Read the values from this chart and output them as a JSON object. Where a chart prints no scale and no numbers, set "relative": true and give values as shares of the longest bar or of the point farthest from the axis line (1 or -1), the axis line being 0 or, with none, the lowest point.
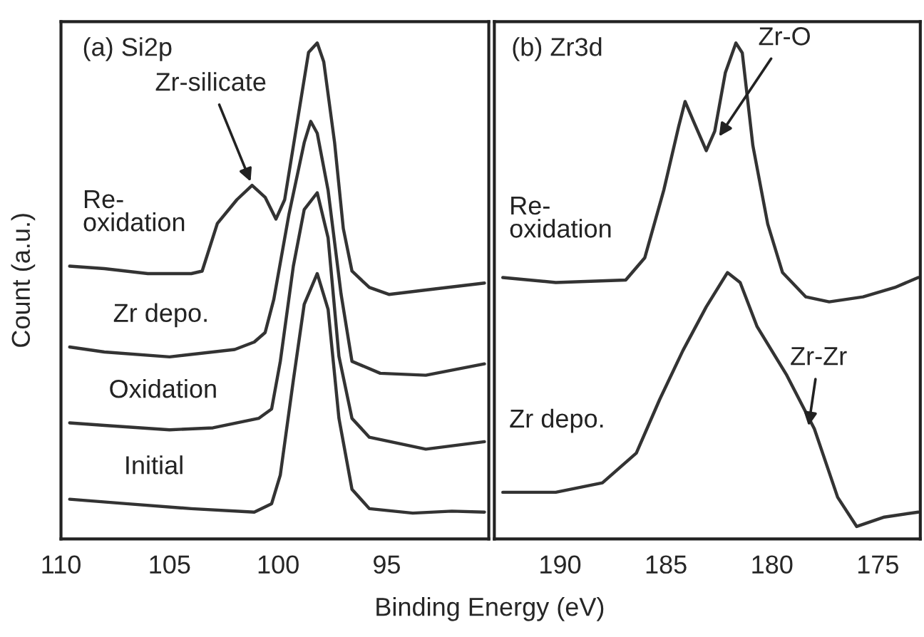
{
  "chart_data": [
    {
      "type": "line",
      "title": "(a) Si2p",
      "xlabel": "Binding Energy (eV)",
      "ylabel": "Count (a.u.)",
      "relative": true,
      "xlim": [
        110,
        90.3
      ],
      "xticks": [
        110,
        105,
        100,
        95
      ],
      "grid": false,
      "legend": false,
      "series": [
        {
          "name": "Re-\noxidation",
          "color": "#333333",
          "x": [
            109.6,
            108,
            106,
            104,
            103.5,
            102.8,
            101.9,
            101.2,
            100.6,
            100.1,
            99.7,
            99.1,
            98.6,
            98.2,
            97.9,
            97.4,
            97.0,
            96.6,
            95.8,
            94.9,
            93.2,
            90.5
          ],
          "values": [
            0.55,
            0.545,
            0.535,
            0.535,
            0.54,
            0.636,
            0.684,
            0.713,
            0.689,
            0.645,
            0.684,
            0.846,
            0.981,
            1.0,
            0.962,
            0.799,
            0.626,
            0.54,
            0.507,
            0.493,
            0.502,
            0.516
          ]
        },
        {
          "name": "Zr depo.",
          "color": "#333333",
          "x": [
            109.6,
            108,
            105,
            102,
            101.1,
            100.6,
            100.2,
            99.5,
            98.8,
            98.5,
            98.2,
            97.7,
            97.1,
            96.6,
            95.3,
            93.2,
            90.5
          ],
          "values": [
            0.387,
            0.377,
            0.367,
            0.382,
            0.397,
            0.416,
            0.483,
            0.655,
            0.799,
            0.842,
            0.818,
            0.703,
            0.493,
            0.358,
            0.334,
            0.33,
            0.353
          ]
        },
        {
          "name": "Oxidation",
          "color": "#333333",
          "x": [
            109.6,
            108,
            105,
            103,
            100.9,
            100.3,
            99.9,
            99.3,
            98.8,
            98.2,
            97.7,
            97.2,
            96.6,
            95.8,
            93.2,
            90.5
          ],
          "values": [
            0.234,
            0.229,
            0.22,
            0.224,
            0.243,
            0.262,
            0.358,
            0.55,
            0.664,
            0.698,
            0.607,
            0.368,
            0.243,
            0.205,
            0.181,
            0.196
          ]
        },
        {
          "name": "Initial",
          "color": "#333333",
          "x": [
            109.6,
            107,
            104,
            101.1,
            100.3,
            99.9,
            99.3,
            98.8,
            98.2,
            97.7,
            97.2,
            96.6,
            95.8,
            93.8,
            92,
            90.5
          ],
          "values": [
            0.08,
            0.071,
            0.061,
            0.054,
            0.071,
            0.129,
            0.32,
            0.473,
            0.535,
            0.463,
            0.243,
            0.1,
            0.061,
            0.052,
            0.056,
            0.054
          ]
        }
      ],
      "annotations": [
        {
          "text": "Zr-silicate",
          "x": 101.2,
          "y": 0.713
        }
      ]
    },
    {
      "type": "line",
      "title": "(b) Zr3d",
      "relative": true,
      "xlim": [
        193.1,
        173
      ],
      "xticks": [
        190,
        185,
        180,
        175
      ],
      "grid": false,
      "legend": false,
      "series": [
        {
          "name": "Re-\noxidation",
          "color": "#333333",
          "x": [
            192.7,
            190.2,
            186.9,
            186.0,
            185.1,
            184.4,
            184.1,
            183.7,
            183.1,
            182.7,
            182.2,
            181.7,
            181.4,
            180.9,
            180.2,
            179.5,
            178.4,
            177.3,
            175.7,
            174.2,
            173.1
          ],
          "values": [
            0.527,
            0.517,
            0.522,
            0.567,
            0.704,
            0.832,
            0.882,
            0.842,
            0.783,
            0.822,
            0.94,
            1.0,
            0.98,
            0.793,
            0.635,
            0.537,
            0.488,
            0.478,
            0.488,
            0.507,
            0.527
          ]
        },
        {
          "name": "Zr depo.",
          "color": "#333333",
          "x": [
            192.7,
            190.2,
            188.0,
            186.4,
            185.3,
            184.2,
            183.1,
            182.1,
            181.5,
            180.7,
            179.3,
            178.0,
            176.9,
            176.0,
            174.7,
            173.1
          ],
          "values": [
            0.094,
            0.094,
            0.113,
            0.173,
            0.281,
            0.38,
            0.468,
            0.537,
            0.517,
            0.428,
            0.33,
            0.222,
            0.084,
            0.025,
            0.044,
            0.054
          ]
        }
      ],
      "annotations": [
        {
          "text": "Zr-O",
          "x": 182.6,
          "y": 0.805
        },
        {
          "text": "Zr-Zr",
          "x": 178.3,
          "y": 0.22
        }
      ]
    }
  ]
}
